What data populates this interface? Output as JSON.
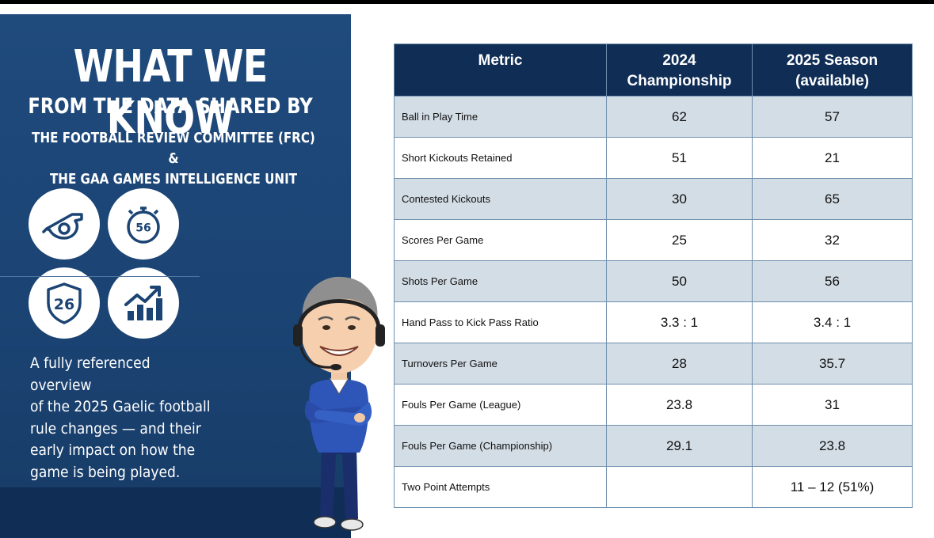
{
  "panel": {
    "title_line1": "WHAT WE KNOW",
    "title_line2": "FROM THE DATA SHARED BY",
    "title_line3a": "THE FOOTBALL REVIEW COMMITTEE (FRC) &",
    "title_line3b": "THE GAA GAMES INTELLIGENCE UNIT",
    "icons": [
      {
        "name": "whistle-icon"
      },
      {
        "name": "stopwatch-icon",
        "label": "56"
      },
      {
        "name": "shield-icon",
        "label": "26"
      },
      {
        "name": "growth-chart-icon"
      }
    ],
    "blurb_lines": [
      "A fully referenced overview",
      "of the 2025 Gaelic football",
      "rule changes — and their",
      "early impact on how the",
      "game is being played."
    ]
  },
  "table": {
    "headers": {
      "metric": "Metric",
      "col2_line1": "2024",
      "col2_line2": "Championship",
      "col3_line1": "2025 Season",
      "col3_line2": "(available)"
    },
    "rows": [
      {
        "metric": "Ball in Play Time",
        "c2024": "62",
        "c2025": "57"
      },
      {
        "metric": "Short Kickouts Retained",
        "c2024": "51",
        "c2025": "21"
      },
      {
        "metric": "Contested Kickouts",
        "c2024": "30",
        "c2025": "65"
      },
      {
        "metric": "Scores Per Game",
        "c2024": "25",
        "c2025": "32"
      },
      {
        "metric": "Shots Per Game",
        "c2024": "50",
        "c2025": "56"
      },
      {
        "metric": "Hand Pass to Kick Pass Ratio",
        "c2024": "3.3 : 1",
        "c2025": "3.4 : 1"
      },
      {
        "metric": "Turnovers Per Game",
        "c2024": "28",
        "c2025": "35.7"
      },
      {
        "metric": "Fouls Per Game (League)",
        "c2024": "23.8",
        "c2025": "31"
      },
      {
        "metric": "Fouls Per Game (Championship)",
        "c2024": "29.1",
        "c2025": "23.8"
      },
      {
        "metric": "Two Point Attempts",
        "c2024": "",
        "c2025": "11 – 12 (51%)"
      }
    ]
  },
  "colors": {
    "panel_bg": "#1f4a7c",
    "header_bg": "#0f2d55",
    "row_shade": "#d3dde5",
    "row_plain": "#ffffff",
    "icon_color": "#1b4474"
  }
}
